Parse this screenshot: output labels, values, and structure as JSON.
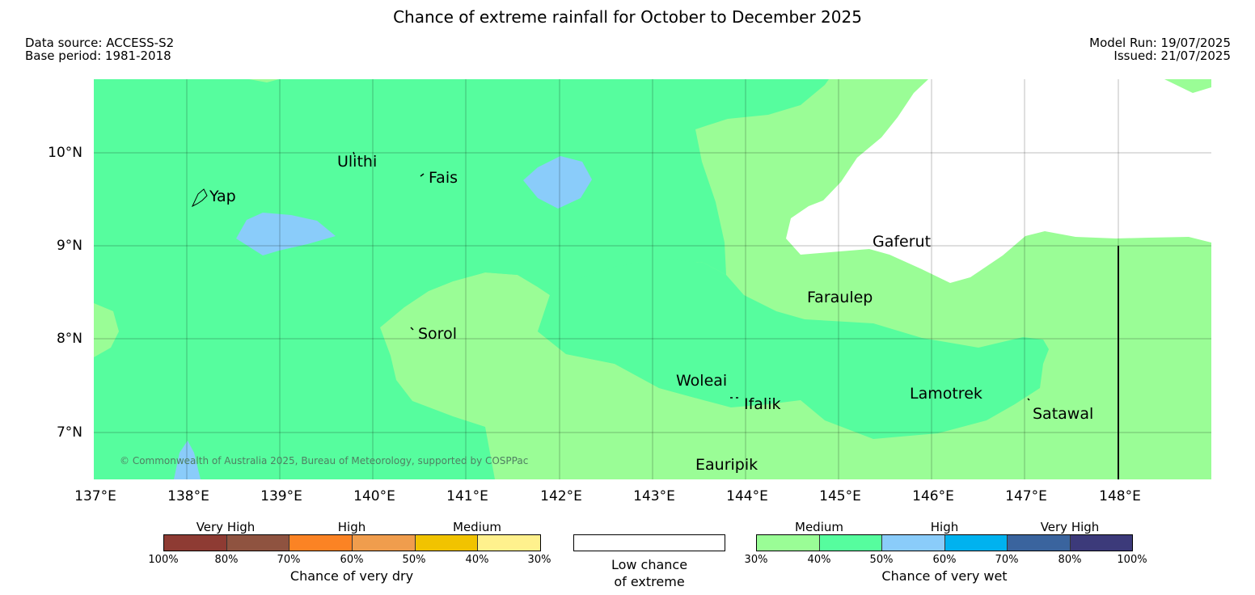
{
  "header": {
    "title": "Chance of extreme rainfall for October to December 2025",
    "data_source": "Data source: ACCESS-S2",
    "base_period": "Base period: 1981-2018",
    "model_run": "Model Run: 19/07/2025",
    "issued": "Issued: 21/07/2025"
  },
  "map": {
    "lat_labels": [
      "10°N",
      "9°N",
      "8°N",
      "7°N"
    ],
    "lon_labels": [
      "137°E",
      "138°E",
      "139°E",
      "140°E",
      "141°E",
      "142°E",
      "143°E",
      "144°E",
      "145°E",
      "146°E",
      "147°E",
      "148°E"
    ],
    "places": [
      "Yap",
      "Ulithi",
      "Fais",
      "Gaferut",
      "Faraulep",
      "Sorol",
      "Woleai",
      "Ifalik",
      "Lamotrek",
      "Satawal",
      "Eauripik"
    ],
    "copyright": "© Commonwealth of Australia 2025, Bureau of Meteorology, supported by COSPPac",
    "colors": {
      "wet_medium_30_40": "#9afd96",
      "wet_medium_40_50": "#56fd9e",
      "wet_high_50_60": "#8accfa",
      "low_chance": "#ffffff"
    }
  },
  "legend": {
    "dry": {
      "categories": [
        "Very High",
        "High",
        "Medium"
      ],
      "ticks": [
        "100%",
        "80%",
        "70%",
        "60%",
        "50%",
        "40%",
        "30%"
      ],
      "colors": [
        "#8e3b33",
        "#8f5340",
        "#fb8324",
        "#f09d4d",
        "#f1c300",
        "#fff18d"
      ],
      "title": "Chance of very dry"
    },
    "low": {
      "label_line1": "Low chance",
      "label_line2": "of extreme"
    },
    "wet": {
      "categories": [
        "Medium",
        "High",
        "Very High"
      ],
      "ticks": [
        "30%",
        "40%",
        "50%",
        "60%",
        "70%",
        "80%",
        "100%"
      ],
      "colors": [
        "#9afd96",
        "#56fd9e",
        "#8accfa",
        "#00b2ef",
        "#3a649e",
        "#3c3a7a"
      ],
      "title": "Chance of very wet"
    }
  }
}
